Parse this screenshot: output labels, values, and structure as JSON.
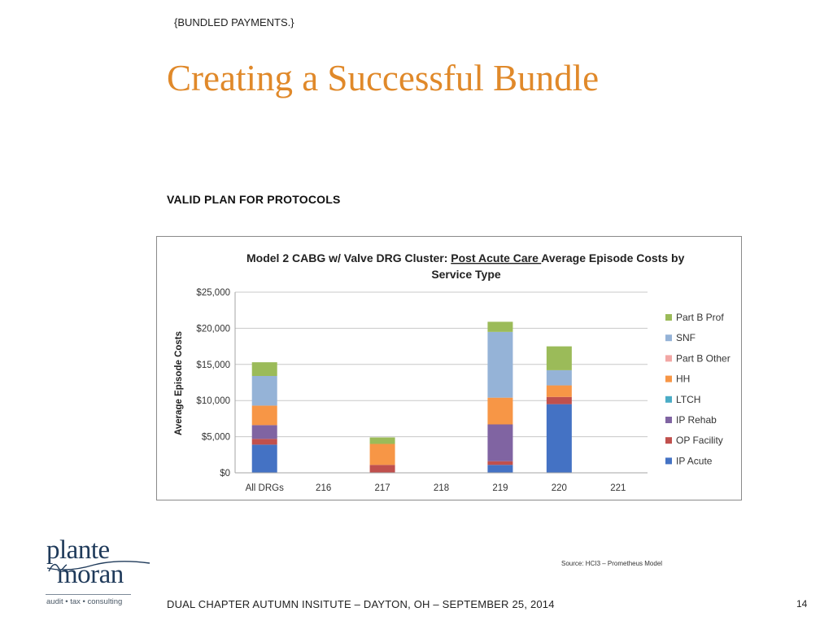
{
  "slide": {
    "tag": "{BUNDLED PAYMENTS.}",
    "title": "Creating a Successful Bundle",
    "section_heading": "VALID PLAN FOR PROTOCOLS",
    "source": "Source: HCI3 – Prometheus Model",
    "footer": "DUAL CHAPTER AUTUMN INSITUTE – DAYTON, OH – SEPTEMBER 25, 2014",
    "page_number": "14",
    "logo": {
      "line1": "plante",
      "line2": "moran",
      "tagline": "audit • tax • consulting",
      "color": "#1f3a5a"
    },
    "accent_color": "#E0892A"
  },
  "chart_data": {
    "type": "bar",
    "stacked": true,
    "title_parts": {
      "before": "Model 2 CABG w/ Valve DRG Cluster: ",
      "underlined": "Post Acute Care ",
      "after_line1": "Average Episode Costs by",
      "line2": "Service Type"
    },
    "xlabel": "",
    "ylabel": "Average Episode Costs",
    "ylim": [
      0,
      25000
    ],
    "yticks": [
      0,
      5000,
      10000,
      15000,
      20000,
      25000
    ],
    "ytick_labels": [
      "$0",
      "$5,000",
      "$10,000",
      "$15,000",
      "$20,000",
      "$25,000"
    ],
    "grid": true,
    "legend_position": "right",
    "categories": [
      "All DRGs",
      "216",
      "217",
      "218",
      "219",
      "220",
      "221"
    ],
    "series": [
      {
        "name": "IP Acute",
        "color": "#4472C4",
        "values": [
          3900,
          0,
          0,
          0,
          1100,
          9500,
          0
        ]
      },
      {
        "name": "OP Facility",
        "color": "#C0504D",
        "values": [
          800,
          0,
          1100,
          0,
          500,
          1000,
          0
        ]
      },
      {
        "name": "IP Rehab",
        "color": "#8064A2",
        "values": [
          1900,
          0,
          0,
          0,
          5100,
          0,
          0
        ]
      },
      {
        "name": "LTCH",
        "color": "#4BACC6",
        "values": [
          0,
          0,
          0,
          0,
          0,
          0,
          0
        ]
      },
      {
        "name": "HH",
        "color": "#F79646",
        "values": [
          2700,
          0,
          2900,
          0,
          3700,
          1600,
          0
        ]
      },
      {
        "name": "Part B Other",
        "color": "#F2A7A5",
        "values": [
          0,
          0,
          0,
          0,
          0,
          0,
          0
        ]
      },
      {
        "name": "SNF",
        "color": "#95B3D7",
        "values": [
          4100,
          0,
          0,
          0,
          9100,
          2100,
          0
        ]
      },
      {
        "name": "Part B Prof",
        "color": "#9BBB59",
        "values": [
          1900,
          0,
          900,
          0,
          1400,
          3300,
          0
        ]
      }
    ],
    "legend_order": [
      "Part B Prof",
      "SNF",
      "Part B Other",
      "HH",
      "LTCH",
      "IP Rehab",
      "OP Facility",
      "IP Acute"
    ]
  }
}
